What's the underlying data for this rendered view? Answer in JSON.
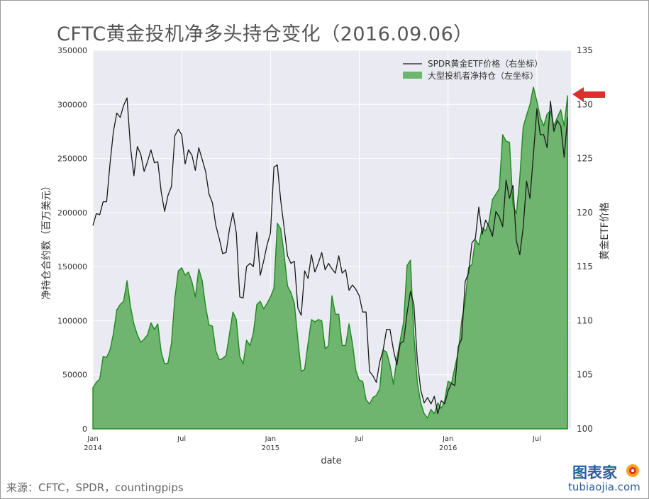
{
  "title": "CFTC黄金投机净多头持仓变化（2016.09.06）",
  "source": "来源：CFTC，SPDR，countingpips",
  "watermark": {
    "cn": "图表家",
    "en": "tubiaojia.com"
  },
  "colors": {
    "plot_bg": "#EAEAF2",
    "area_fill": "#6FB56F",
    "area_line": "#1E8A1E",
    "price_line": "#1a1a1a",
    "arrow": "#D9322E",
    "grid": "#ffffff"
  },
  "icons": {
    "arrow": "red-arrow-left-icon",
    "logo": "tubiaojia-logo-icon"
  },
  "chart_data": {
    "type": "line",
    "xlabel": "date",
    "ylabel_left": "净持仓合约数（百万美元）",
    "ylabel_right": "黄金ETF价格",
    "ylim_left": [
      0,
      350000
    ],
    "ylim_right": [
      100,
      135
    ],
    "y_ticks_left": [
      "0",
      "50000",
      "100000",
      "150000",
      "200000",
      "250000",
      "300000",
      "350000"
    ],
    "y_ticks_right": [
      "100",
      "105",
      "110",
      "115",
      "120",
      "125",
      "130",
      "135"
    ],
    "x_ticks": [
      {
        "label": "Jan",
        "sub": "2014",
        "x": 0
      },
      {
        "label": "Jul",
        "sub": "",
        "x": 26
      },
      {
        "label": "Jan",
        "sub": "2015",
        "x": 52
      },
      {
        "label": "Jul",
        "sub": "",
        "x": 78
      },
      {
        "label": "Jan",
        "sub": "2016",
        "x": 104
      },
      {
        "label": "Jul",
        "sub": "",
        "x": 130
      }
    ],
    "x_range": [
      0,
      140
    ],
    "grid": true,
    "legend_position": "top-right",
    "x_unit": "week index since Jan 2014",
    "series": [
      {
        "name": "SPDR黄金ETF价格（右坐标）",
        "axis": "right",
        "kind": "line",
        "points": [
          [
            0,
            118.8
          ],
          [
            1,
            119.9
          ],
          [
            2,
            119.8
          ],
          [
            3,
            121
          ],
          [
            4,
            121
          ],
          [
            5,
            124.5
          ],
          [
            6,
            127.5
          ],
          [
            7,
            129.2
          ],
          [
            8,
            128.8
          ],
          [
            9,
            129.9
          ],
          [
            10,
            130.6
          ],
          [
            11,
            126
          ],
          [
            12,
            123.4
          ],
          [
            13,
            126.1
          ],
          [
            14,
            125.4
          ],
          [
            15,
            123.8
          ],
          [
            16,
            124.7
          ],
          [
            17,
            125.8
          ],
          [
            18,
            124.6
          ],
          [
            19,
            124.7
          ],
          [
            20,
            121.9
          ],
          [
            21,
            120.1
          ],
          [
            22,
            121.6
          ],
          [
            23,
            122.4
          ],
          [
            24,
            127.1
          ],
          [
            25,
            127.7
          ],
          [
            26,
            127.2
          ],
          [
            27,
            124.5
          ],
          [
            28,
            125.8
          ],
          [
            29,
            125.3
          ],
          [
            30,
            123.9
          ],
          [
            31,
            126
          ],
          [
            32,
            124.9
          ],
          [
            33,
            123.8
          ],
          [
            34,
            121.7
          ],
          [
            35,
            120.9
          ],
          [
            36,
            118.8
          ],
          [
            37,
            117.6
          ],
          [
            38,
            116.2
          ],
          [
            39,
            116.3
          ],
          [
            40,
            118.5
          ],
          [
            41,
            120
          ],
          [
            42,
            118.1
          ],
          [
            43,
            112.2
          ],
          [
            44,
            112.1
          ],
          [
            45,
            115
          ],
          [
            46,
            115.3
          ],
          [
            47,
            115
          ],
          [
            48,
            118.2
          ],
          [
            49,
            114.2
          ],
          [
            50,
            115.5
          ],
          [
            51,
            117
          ],
          [
            52,
            118.1
          ],
          [
            53,
            124.2
          ],
          [
            54,
            124.4
          ],
          [
            55,
            121.1
          ],
          [
            56,
            118.6
          ],
          [
            57,
            116
          ],
          [
            58,
            115.3
          ],
          [
            59,
            115.5
          ],
          [
            60,
            111.2
          ],
          [
            61,
            110.5
          ],
          [
            62,
            114.6
          ],
          [
            63,
            113.9
          ],
          [
            64,
            116.1
          ],
          [
            65,
            114.5
          ],
          [
            66,
            115.3
          ],
          [
            67,
            116.3
          ],
          [
            68,
            114.7
          ],
          [
            69,
            115.3
          ],
          [
            70,
            114.8
          ],
          [
            71,
            114.4
          ],
          [
            72,
            116
          ],
          [
            73,
            114.4
          ],
          [
            74,
            114.7
          ],
          [
            75,
            112.8
          ],
          [
            76,
            113.3
          ],
          [
            77,
            112.9
          ],
          [
            78,
            112.3
          ],
          [
            79,
            110.8
          ],
          [
            80,
            110.8
          ],
          [
            81,
            105.3
          ],
          [
            82,
            104.9
          ],
          [
            83,
            104.3
          ],
          [
            84,
            106.2
          ],
          [
            85,
            107.3
          ],
          [
            86,
            109.2
          ],
          [
            87,
            109.2
          ],
          [
            88,
            107.3
          ],
          [
            89,
            105.9
          ],
          [
            90,
            107.9
          ],
          [
            91,
            108.1
          ],
          [
            92,
            110.7
          ],
          [
            93,
            112.7
          ],
          [
            94,
            111.5
          ],
          [
            95,
            106.3
          ],
          [
            96,
            103.6
          ],
          [
            97,
            102.4
          ],
          [
            98,
            102.9
          ],
          [
            99,
            102.3
          ],
          [
            100,
            103
          ],
          [
            101,
            101.4
          ],
          [
            102,
            102.6
          ],
          [
            103,
            102.3
          ],
          [
            104,
            103.5
          ],
          [
            105,
            104.2
          ],
          [
            106,
            104
          ],
          [
            107,
            107.6
          ],
          [
            108,
            108.3
          ],
          [
            109,
            113.6
          ],
          [
            110,
            114.4
          ],
          [
            111,
            117.2
          ],
          [
            112,
            117.6
          ],
          [
            113,
            120.5
          ],
          [
            114,
            118
          ],
          [
            115,
            119.3
          ],
          [
            116,
            118.7
          ],
          [
            117,
            117.8
          ],
          [
            118,
            120.1
          ],
          [
            119,
            119.6
          ],
          [
            120,
            118.7
          ],
          [
            121,
            123
          ],
          [
            122,
            121.3
          ],
          [
            123,
            122.5
          ],
          [
            124,
            117.4
          ],
          [
            125,
            116.1
          ],
          [
            126,
            118.6
          ],
          [
            127,
            122.9
          ],
          [
            128,
            121.3
          ],
          [
            129,
            125.3
          ],
          [
            130,
            129.6
          ],
          [
            131,
            127.2
          ],
          [
            132,
            127.2
          ],
          [
            133,
            126
          ],
          [
            134,
            130.3
          ],
          [
            135,
            127.5
          ],
          [
            136,
            128.5
          ],
          [
            137,
            128
          ],
          [
            138,
            125.1
          ],
          [
            139,
            128.8
          ]
        ]
      },
      {
        "name": "大型投机者净持仓（左坐标）",
        "axis": "left",
        "kind": "area",
        "points": [
          [
            0,
            38000
          ],
          [
            1,
            43000
          ],
          [
            2,
            46000
          ],
          [
            3,
            67000
          ],
          [
            4,
            66000
          ],
          [
            5,
            73000
          ],
          [
            6,
            88000
          ],
          [
            7,
            110000
          ],
          [
            8,
            115000
          ],
          [
            9,
            118000
          ],
          [
            10,
            137000
          ],
          [
            11,
            113000
          ],
          [
            12,
            97000
          ],
          [
            13,
            87000
          ],
          [
            14,
            80000
          ],
          [
            15,
            83000
          ],
          [
            16,
            87000
          ],
          [
            17,
            98000
          ],
          [
            18,
            92000
          ],
          [
            19,
            97000
          ],
          [
            20,
            71000
          ],
          [
            21,
            60000
          ],
          [
            22,
            61000
          ],
          [
            23,
            79000
          ],
          [
            24,
            121000
          ],
          [
            25,
            146000
          ],
          [
            26,
            149000
          ],
          [
            27,
            142000
          ],
          [
            28,
            145000
          ],
          [
            29,
            136000
          ],
          [
            30,
            122000
          ],
          [
            31,
            148000
          ],
          [
            32,
            137000
          ],
          [
            33,
            113000
          ],
          [
            34,
            96000
          ],
          [
            35,
            95000
          ],
          [
            36,
            72000
          ],
          [
            37,
            64000
          ],
          [
            38,
            65000
          ],
          [
            39,
            68000
          ],
          [
            40,
            88000
          ],
          [
            41,
            108000
          ],
          [
            42,
            101000
          ],
          [
            43,
            67000
          ],
          [
            44,
            60000
          ],
          [
            45,
            82000
          ],
          [
            46,
            77000
          ],
          [
            47,
            89000
          ],
          [
            48,
            115000
          ],
          [
            49,
            118000
          ],
          [
            50,
            111000
          ],
          [
            51,
            116000
          ],
          [
            52,
            122000
          ],
          [
            53,
            130000
          ],
          [
            54,
            190000
          ],
          [
            55,
            185000
          ],
          [
            56,
            161000
          ],
          [
            57,
            132000
          ],
          [
            58,
            126000
          ],
          [
            59,
            116000
          ],
          [
            60,
            83000
          ],
          [
            61,
            53000
          ],
          [
            62,
            55000
          ],
          [
            63,
            79000
          ],
          [
            64,
            101000
          ],
          [
            65,
            99000
          ],
          [
            66,
            101000
          ],
          [
            67,
            100000
          ],
          [
            68,
            74000
          ],
          [
            69,
            77000
          ],
          [
            70,
            123000
          ],
          [
            71,
            106000
          ],
          [
            72,
            106000
          ],
          [
            73,
            77000
          ],
          [
            74,
            77000
          ],
          [
            75,
            97000
          ],
          [
            76,
            79000
          ],
          [
            77,
            54000
          ],
          [
            78,
            45000
          ],
          [
            79,
            44000
          ],
          [
            80,
            27000
          ],
          [
            81,
            23000
          ],
          [
            82,
            29000
          ],
          [
            83,
            31000
          ],
          [
            84,
            37000
          ],
          [
            85,
            73000
          ],
          [
            86,
            71000
          ],
          [
            87,
            59000
          ],
          [
            88,
            41000
          ],
          [
            89,
            65000
          ],
          [
            90,
            82000
          ],
          [
            91,
            99000
          ],
          [
            92,
            151000
          ],
          [
            93,
            156000
          ],
          [
            94,
            87000
          ],
          [
            95,
            43000
          ],
          [
            96,
            24000
          ],
          [
            97,
            14000
          ],
          [
            98,
            10000
          ],
          [
            99,
            18000
          ],
          [
            100,
            14000
          ],
          [
            101,
            24000
          ],
          [
            102,
            19000
          ],
          [
            103,
            26000
          ],
          [
            104,
            44000
          ],
          [
            105,
            42000
          ],
          [
            106,
            57000
          ],
          [
            107,
            71000
          ],
          [
            108,
            100000
          ],
          [
            109,
            118000
          ],
          [
            110,
            149000
          ],
          [
            111,
            152000
          ],
          [
            112,
            175000
          ],
          [
            113,
            170000
          ],
          [
            114,
            186000
          ],
          [
            115,
            183000
          ],
          [
            116,
            192000
          ],
          [
            117,
            212000
          ],
          [
            118,
            217000
          ],
          [
            119,
            222000
          ],
          [
            120,
            272000
          ],
          [
            121,
            266000
          ],
          [
            122,
            265000
          ],
          [
            123,
            207000
          ],
          [
            124,
            199000
          ],
          [
            125,
            232000
          ],
          [
            126,
            279000
          ],
          [
            127,
            290000
          ],
          [
            128,
            300000
          ],
          [
            129,
            316000
          ],
          [
            130,
            303000
          ],
          [
            131,
            288000
          ],
          [
            132,
            280000
          ],
          [
            133,
            291000
          ],
          [
            134,
            294000
          ],
          [
            135,
            280000
          ],
          [
            136,
            288000
          ],
          [
            137,
            295000
          ],
          [
            138,
            280000
          ],
          [
            139,
            308000
          ]
        ]
      }
    ]
  }
}
